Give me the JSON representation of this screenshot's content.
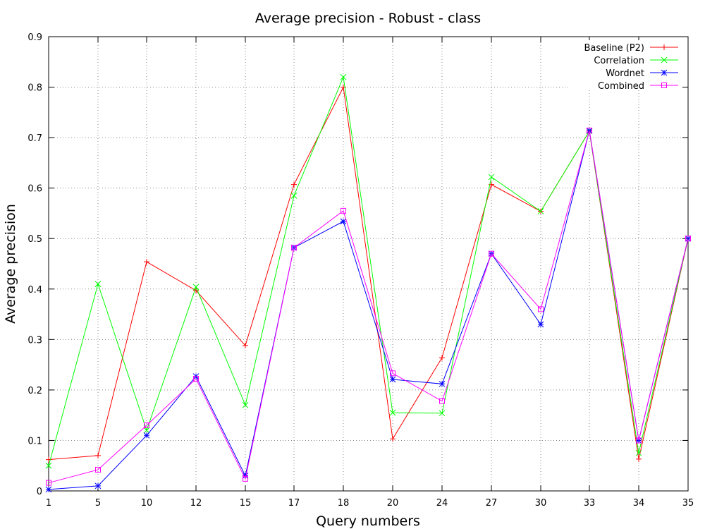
{
  "chart_data": {
    "type": "line",
    "title": "Average precision - Robust - class",
    "xlabel": "Query numbers",
    "ylabel": "Average precision",
    "categories": [
      "1",
      "5",
      "10",
      "12",
      "15",
      "17",
      "18",
      "20",
      "24",
      "27",
      "30",
      "33",
      "34",
      "35"
    ],
    "ylim": [
      0,
      0.9
    ],
    "yticks": [
      "0",
      "0.1",
      "0.2",
      "0.3",
      "0.4",
      "0.5",
      "0.6",
      "0.7",
      "0.8",
      "0.9"
    ],
    "grid": true,
    "legend_position": "top-right",
    "series": [
      {
        "name": "Baseline (P2)",
        "color": "#ff0000",
        "marker": "plus",
        "values": [
          0.062,
          0.07,
          0.454,
          0.397,
          0.288,
          0.607,
          0.8,
          0.103,
          0.264,
          0.607,
          0.554,
          0.713,
          0.063,
          0.5
        ]
      },
      {
        "name": "Correlation",
        "color": "#00ff00",
        "marker": "cross",
        "values": [
          0.05,
          0.41,
          0.12,
          0.404,
          0.17,
          0.585,
          0.82,
          0.155,
          0.154,
          0.622,
          0.554,
          0.713,
          0.075,
          0.5
        ]
      },
      {
        "name": "Wordnet",
        "color": "#0000ff",
        "marker": "star",
        "values": [
          0.003,
          0.01,
          0.11,
          0.227,
          0.03,
          0.482,
          0.534,
          0.221,
          0.212,
          0.47,
          0.33,
          0.714,
          0.1,
          0.5
        ]
      },
      {
        "name": "Combined",
        "color": "#ff00ff",
        "marker": "square",
        "values": [
          0.016,
          0.042,
          0.13,
          0.222,
          0.024,
          0.482,
          0.555,
          0.233,
          0.178,
          0.47,
          0.36,
          0.714,
          0.1,
          0.5
        ]
      }
    ]
  }
}
